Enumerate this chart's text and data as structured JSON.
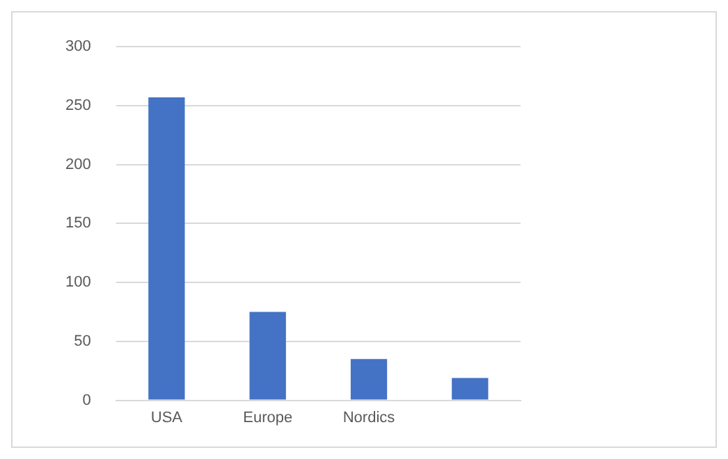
{
  "chart_data": {
    "type": "bar",
    "categories": [
      "USA",
      "Europe",
      "Nordics",
      null
    ],
    "values": [
      257,
      75,
      35,
      19
    ],
    "color": "#4472c4",
    "ylim": [
      0,
      300
    ],
    "yticks": [
      0,
      50,
      100,
      150,
      200,
      250,
      300
    ],
    "grid": "y"
  }
}
